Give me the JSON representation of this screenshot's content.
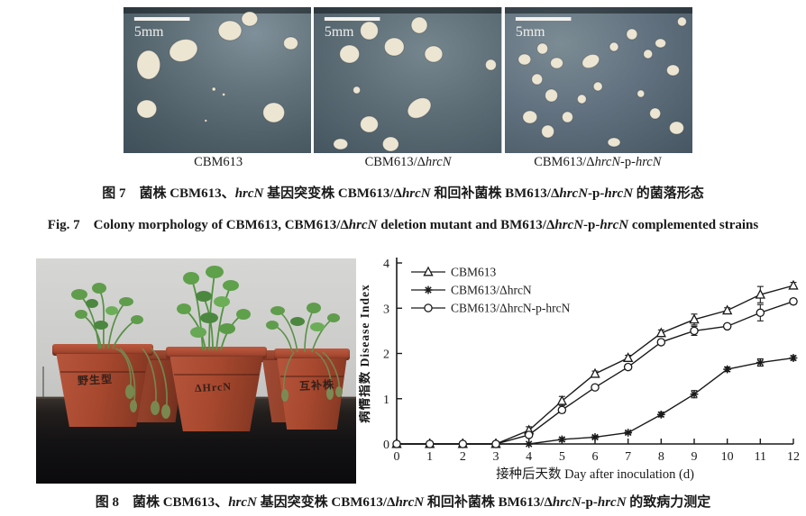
{
  "figure7": {
    "panels": [
      {
        "scalebar": "5mm",
        "label_segments": [
          {
            "text": "CBM613"
          }
        ]
      },
      {
        "scalebar": "5mm",
        "label_segments": [
          {
            "text": "CBM613/Δ"
          },
          {
            "text": "hrcN",
            "italic": true
          }
        ]
      },
      {
        "scalebar": "5mm",
        "label_segments": [
          {
            "text": "CBM613/Δ"
          },
          {
            "text": "hrcN",
            "italic": true
          },
          {
            "text": "-p-"
          },
          {
            "text": "hrcN",
            "italic": true
          }
        ]
      }
    ],
    "caption_cn_segments": [
      {
        "text": "图 7　菌株 CBM613、"
      },
      {
        "text": "hrcN",
        "italic": true
      },
      {
        "text": " 基因突变株 CBM613/Δ"
      },
      {
        "text": "hrcN",
        "italic": true
      },
      {
        "text": " 和回补菌株 BM613/Δ"
      },
      {
        "text": "hrcN",
        "italic": true
      },
      {
        "text": "-p-"
      },
      {
        "text": "hrcN",
        "italic": true
      },
      {
        "text": " 的菌落形态"
      }
    ],
    "caption_en_segments": [
      {
        "text": "Fig. 7　Colony morphology of CBM613, CBM613/Δ"
      },
      {
        "text": "hrcN",
        "italic": true
      },
      {
        "text": " deletion mutant and BM613/Δ"
      },
      {
        "text": "hrcN",
        "italic": true
      },
      {
        "text": "-p-"
      },
      {
        "text": "hrcN",
        "italic": true
      },
      {
        "text": " complemented strains"
      }
    ]
  },
  "figure8": {
    "photo_pot_labels": [
      "野生型",
      "ΔHrcN",
      "互补株"
    ],
    "caption_cn_segments": [
      {
        "text": "图 8　菌株 CBM613、"
      },
      {
        "text": "hrcN",
        "italic": true
      },
      {
        "text": " 基因突变株 CBM613/Δ"
      },
      {
        "text": "hrcN",
        "italic": true
      },
      {
        "text": " 和回补菌株 BM613/Δ"
      },
      {
        "text": "hrcN",
        "italic": true
      },
      {
        "text": "-p-"
      },
      {
        "text": "hrcN",
        "italic": true
      },
      {
        "text": " 的致病力测定"
      }
    ]
  },
  "chart_data": {
    "type": "line",
    "x": [
      0,
      1,
      2,
      3,
      4,
      5,
      6,
      7,
      8,
      9,
      10,
      11,
      12
    ],
    "series": [
      {
        "name": "CBM613",
        "marker": "triangle-open",
        "values": [
          0,
          0,
          0,
          0,
          0.3,
          0.95,
          1.55,
          1.9,
          2.45,
          2.75,
          2.95,
          3.3,
          3.5
        ],
        "errors": [
          0,
          0,
          0,
          0,
          0.08,
          0.1,
          0.06,
          0.06,
          0.07,
          0.12,
          0.06,
          0.18,
          0.07
        ]
      },
      {
        "name": "CBM613/ΔhrcN",
        "marker": "asterisk",
        "values": [
          0,
          0,
          0,
          0,
          0,
          0.1,
          0.15,
          0.25,
          0.65,
          1.1,
          1.65,
          1.8,
          1.9
        ],
        "errors": [
          0,
          0,
          0,
          0,
          0.02,
          0.04,
          0.03,
          0.03,
          0.05,
          0.08,
          0.05,
          0.08,
          0.05
        ]
      },
      {
        "name": "CBM613/ΔhrcN-p-hrcN",
        "marker": "circle-open",
        "values": [
          0,
          0,
          0,
          0,
          0.2,
          0.75,
          1.25,
          1.7,
          2.25,
          2.5,
          2.6,
          2.9,
          3.15
        ],
        "errors": [
          0,
          0,
          0,
          0,
          0.05,
          0.06,
          0.05,
          0.06,
          0.06,
          0.1,
          0.05,
          0.18,
          0.06
        ]
      }
    ],
    "xlabel": "接种后天数 Day after inoculation (d)",
    "ylabel": "病情指数 Disease Index",
    "xlim": [
      0,
      12
    ],
    "ylim": [
      0,
      4
    ],
    "xticks": [
      0,
      1,
      2,
      3,
      4,
      5,
      6,
      7,
      8,
      9,
      10,
      11,
      12
    ],
    "yticks": [
      0,
      1,
      2,
      3,
      4
    ],
    "legend_position": "top-left",
    "line_color": "#1a1a1a"
  }
}
